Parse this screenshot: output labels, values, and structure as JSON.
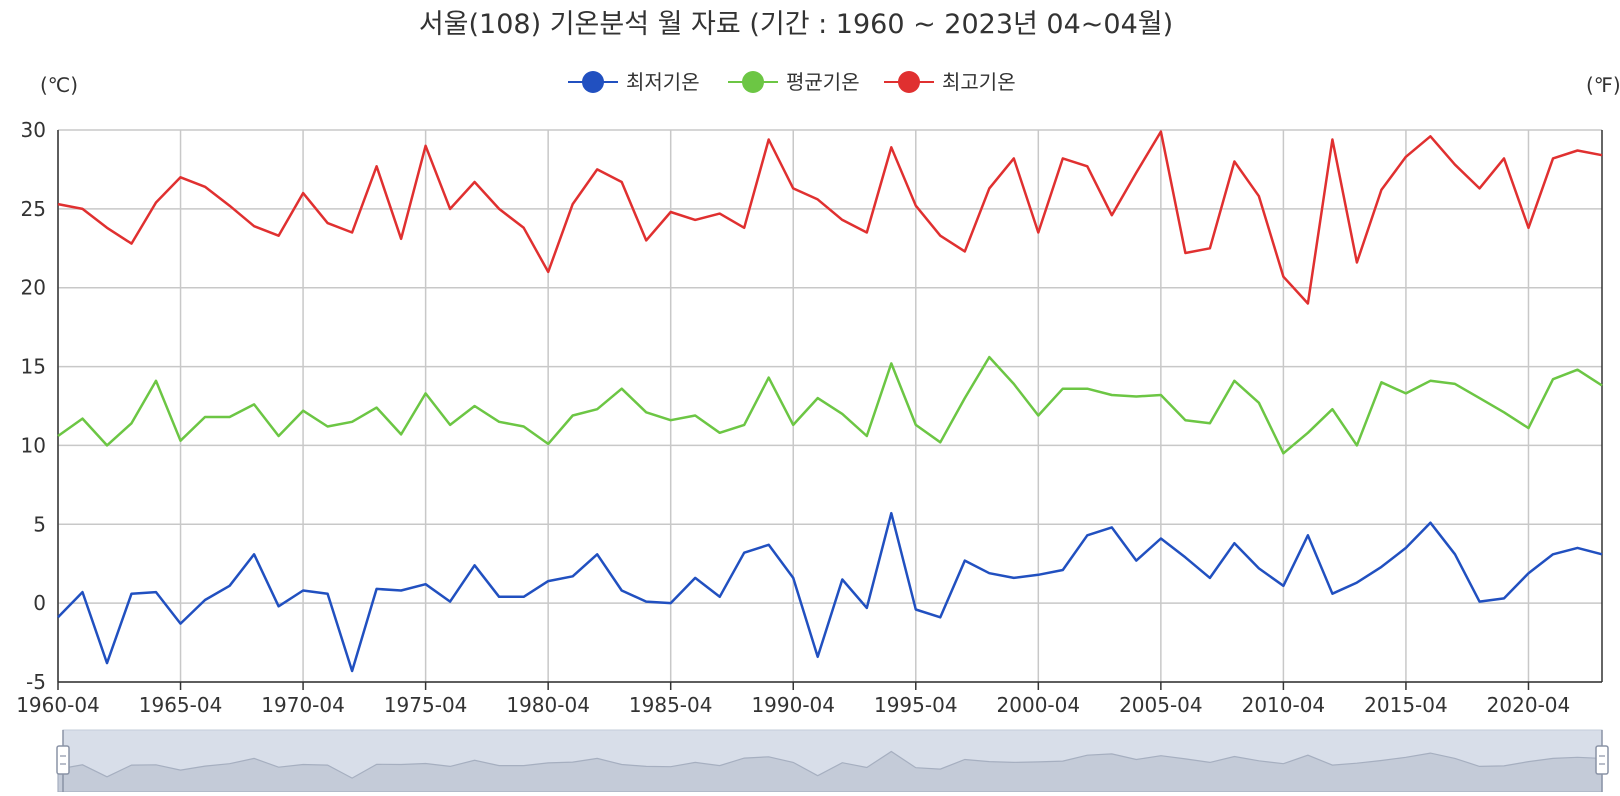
{
  "chart_data": {
    "type": "line",
    "title": "서울(108) 기온분석 월 자료 (기간 : 1960 ~ 2023년  04~04월)",
    "ylabel_left": "(℃)",
    "ylabel_right": "(℉)",
    "ylim": [
      -5,
      30
    ],
    "yticks": [
      -5,
      0,
      5,
      10,
      15,
      20,
      25,
      30
    ],
    "x_tick_labels": [
      "1960-04",
      "1965-04",
      "1970-04",
      "1975-04",
      "1980-04",
      "1985-04",
      "1990-04",
      "1995-04",
      "2000-04",
      "2005-04",
      "2010-04",
      "2015-04",
      "2020-04"
    ],
    "legend_position": "top-center",
    "grid": true,
    "x": [
      1960,
      1961,
      1962,
      1963,
      1964,
      1965,
      1966,
      1967,
      1968,
      1969,
      1970,
      1971,
      1972,
      1973,
      1974,
      1975,
      1976,
      1977,
      1978,
      1979,
      1980,
      1981,
      1982,
      1983,
      1984,
      1985,
      1986,
      1987,
      1988,
      1989,
      1990,
      1991,
      1992,
      1993,
      1994,
      1995,
      1996,
      1997,
      1998,
      1999,
      2000,
      2001,
      2002,
      2003,
      2004,
      2005,
      2006,
      2007,
      2008,
      2009,
      2010,
      2011,
      2012,
      2013,
      2014,
      2015,
      2016,
      2017,
      2018,
      2019,
      2020,
      2021,
      2022,
      2023
    ],
    "series": [
      {
        "name": "최저기온",
        "color": "#2150c0",
        "values": [
          -0.9,
          0.7,
          -3.8,
          0.6,
          0.7,
          -1.3,
          0.2,
          1.1,
          3.1,
          -0.2,
          0.8,
          0.6,
          -4.3,
          0.9,
          0.8,
          1.2,
          0.1,
          2.4,
          0.4,
          0.4,
          1.4,
          1.7,
          3.1,
          0.8,
          0.1,
          0.0,
          1.6,
          0.4,
          3.2,
          3.7,
          1.6,
          -3.4,
          1.5,
          -0.3,
          5.7,
          -0.4,
          -0.9,
          2.7,
          1.9,
          1.6,
          1.8,
          2.1,
          4.3,
          4.8,
          2.7,
          4.1,
          2.9,
          1.6,
          3.8,
          2.2,
          1.1,
          4.3,
          0.6,
          1.3,
          2.3,
          3.5,
          5.1,
          3.1,
          0.1,
          0.3,
          1.9,
          3.1,
          3.5,
          3.1
        ]
      },
      {
        "name": "평균기온",
        "color": "#6cc644",
        "values": [
          10.6,
          11.7,
          10.0,
          11.4,
          14.1,
          10.3,
          11.8,
          11.8,
          12.6,
          10.6,
          12.2,
          11.2,
          11.5,
          12.4,
          10.7,
          13.3,
          11.3,
          12.5,
          11.5,
          11.2,
          10.1,
          11.9,
          12.3,
          13.6,
          12.1,
          11.6,
          11.9,
          10.8,
          11.3,
          14.3,
          11.3,
          13.0,
          12.0,
          10.6,
          15.2,
          11.3,
          10.2,
          13.0,
          15.6,
          13.9,
          11.9,
          13.6,
          13.6,
          13.2,
          13.1,
          13.2,
          11.6,
          11.4,
          14.1,
          12.7,
          9.5,
          10.8,
          12.3,
          10.0,
          14.0,
          13.3,
          14.1,
          13.9,
          13.0,
          12.1,
          11.1,
          14.2,
          14.8,
          13.8
        ]
      },
      {
        "name": "최고기온",
        "color": "#e03030",
        "values": [
          25.3,
          25.0,
          23.8,
          22.8,
          25.4,
          27.0,
          26.4,
          25.2,
          23.9,
          23.3,
          26.0,
          24.1,
          23.5,
          27.7,
          23.1,
          29.0,
          25.0,
          26.7,
          25.0,
          23.8,
          21.0,
          25.3,
          27.5,
          26.7,
          23.0,
          24.8,
          24.3,
          24.7,
          23.8,
          29.4,
          26.3,
          25.6,
          24.3,
          23.5,
          28.9,
          25.2,
          23.3,
          22.3,
          26.3,
          28.2,
          23.5,
          28.2,
          27.7,
          24.6,
          27.3,
          29.9,
          22.2,
          22.5,
          28.0,
          25.8,
          20.7,
          19.0,
          29.4,
          21.6,
          26.2,
          28.3,
          29.6,
          27.8,
          26.3,
          28.2,
          23.8,
          28.2,
          28.7,
          28.4
        ]
      }
    ]
  }
}
